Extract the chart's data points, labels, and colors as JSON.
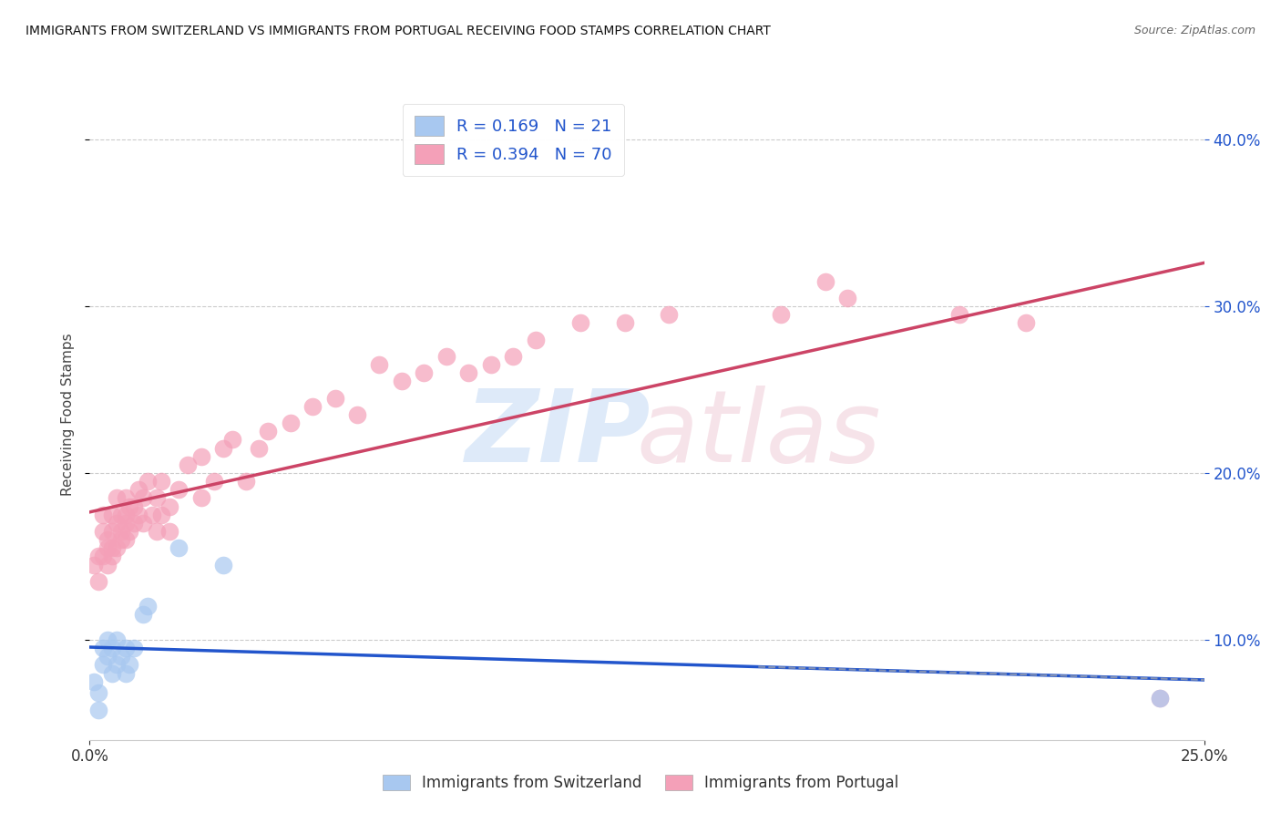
{
  "title": "IMMIGRANTS FROM SWITZERLAND VS IMMIGRANTS FROM PORTUGAL RECEIVING FOOD STAMPS CORRELATION CHART",
  "source": "Source: ZipAtlas.com",
  "ylabel": "Receiving Food Stamps",
  "xlim": [
    0.0,
    0.25
  ],
  "ylim": [
    0.04,
    0.43
  ],
  "swiss_R": 0.169,
  "swiss_N": 21,
  "portugal_R": 0.394,
  "portugal_N": 70,
  "swiss_color": "#a8c8f0",
  "portugal_color": "#f4a0b8",
  "swiss_line_color": "#2255cc",
  "portugal_line_color": "#cc4466",
  "swiss_x": [
    0.001,
    0.002,
    0.002,
    0.003,
    0.003,
    0.004,
    0.004,
    0.005,
    0.005,
    0.006,
    0.006,
    0.007,
    0.008,
    0.008,
    0.009,
    0.01,
    0.012,
    0.013,
    0.02,
    0.03,
    0.24
  ],
  "swiss_y": [
    0.075,
    0.068,
    0.058,
    0.085,
    0.095,
    0.09,
    0.1,
    0.08,
    0.095,
    0.085,
    0.1,
    0.09,
    0.095,
    0.08,
    0.085,
    0.095,
    0.115,
    0.12,
    0.155,
    0.145,
    0.065
  ],
  "portugal_x": [
    0.001,
    0.002,
    0.002,
    0.003,
    0.003,
    0.003,
    0.004,
    0.004,
    0.004,
    0.005,
    0.005,
    0.005,
    0.005,
    0.006,
    0.006,
    0.006,
    0.007,
    0.007,
    0.007,
    0.008,
    0.008,
    0.008,
    0.008,
    0.009,
    0.009,
    0.01,
    0.01,
    0.011,
    0.011,
    0.012,
    0.012,
    0.013,
    0.014,
    0.015,
    0.015,
    0.016,
    0.016,
    0.018,
    0.018,
    0.02,
    0.022,
    0.025,
    0.025,
    0.028,
    0.03,
    0.032,
    0.035,
    0.038,
    0.04,
    0.045,
    0.05,
    0.055,
    0.06,
    0.065,
    0.07,
    0.075,
    0.08,
    0.085,
    0.09,
    0.095,
    0.1,
    0.11,
    0.12,
    0.13,
    0.155,
    0.165,
    0.17,
    0.195,
    0.21,
    0.24
  ],
  "portugal_y": [
    0.145,
    0.15,
    0.135,
    0.15,
    0.165,
    0.175,
    0.145,
    0.16,
    0.155,
    0.155,
    0.165,
    0.175,
    0.15,
    0.155,
    0.17,
    0.185,
    0.16,
    0.175,
    0.165,
    0.17,
    0.185,
    0.16,
    0.175,
    0.18,
    0.165,
    0.18,
    0.17,
    0.19,
    0.175,
    0.185,
    0.17,
    0.195,
    0.175,
    0.185,
    0.165,
    0.175,
    0.195,
    0.18,
    0.165,
    0.19,
    0.205,
    0.21,
    0.185,
    0.195,
    0.215,
    0.22,
    0.195,
    0.215,
    0.225,
    0.23,
    0.24,
    0.245,
    0.235,
    0.265,
    0.255,
    0.26,
    0.27,
    0.26,
    0.265,
    0.27,
    0.28,
    0.29,
    0.29,
    0.295,
    0.295,
    0.315,
    0.305,
    0.295,
    0.29,
    0.065
  ],
  "background_color": "#ffffff",
  "grid_color": "#cccccc",
  "legend_swiss_label": "Immigrants from Switzerland",
  "legend_portugal_label": "Immigrants from Portugal"
}
